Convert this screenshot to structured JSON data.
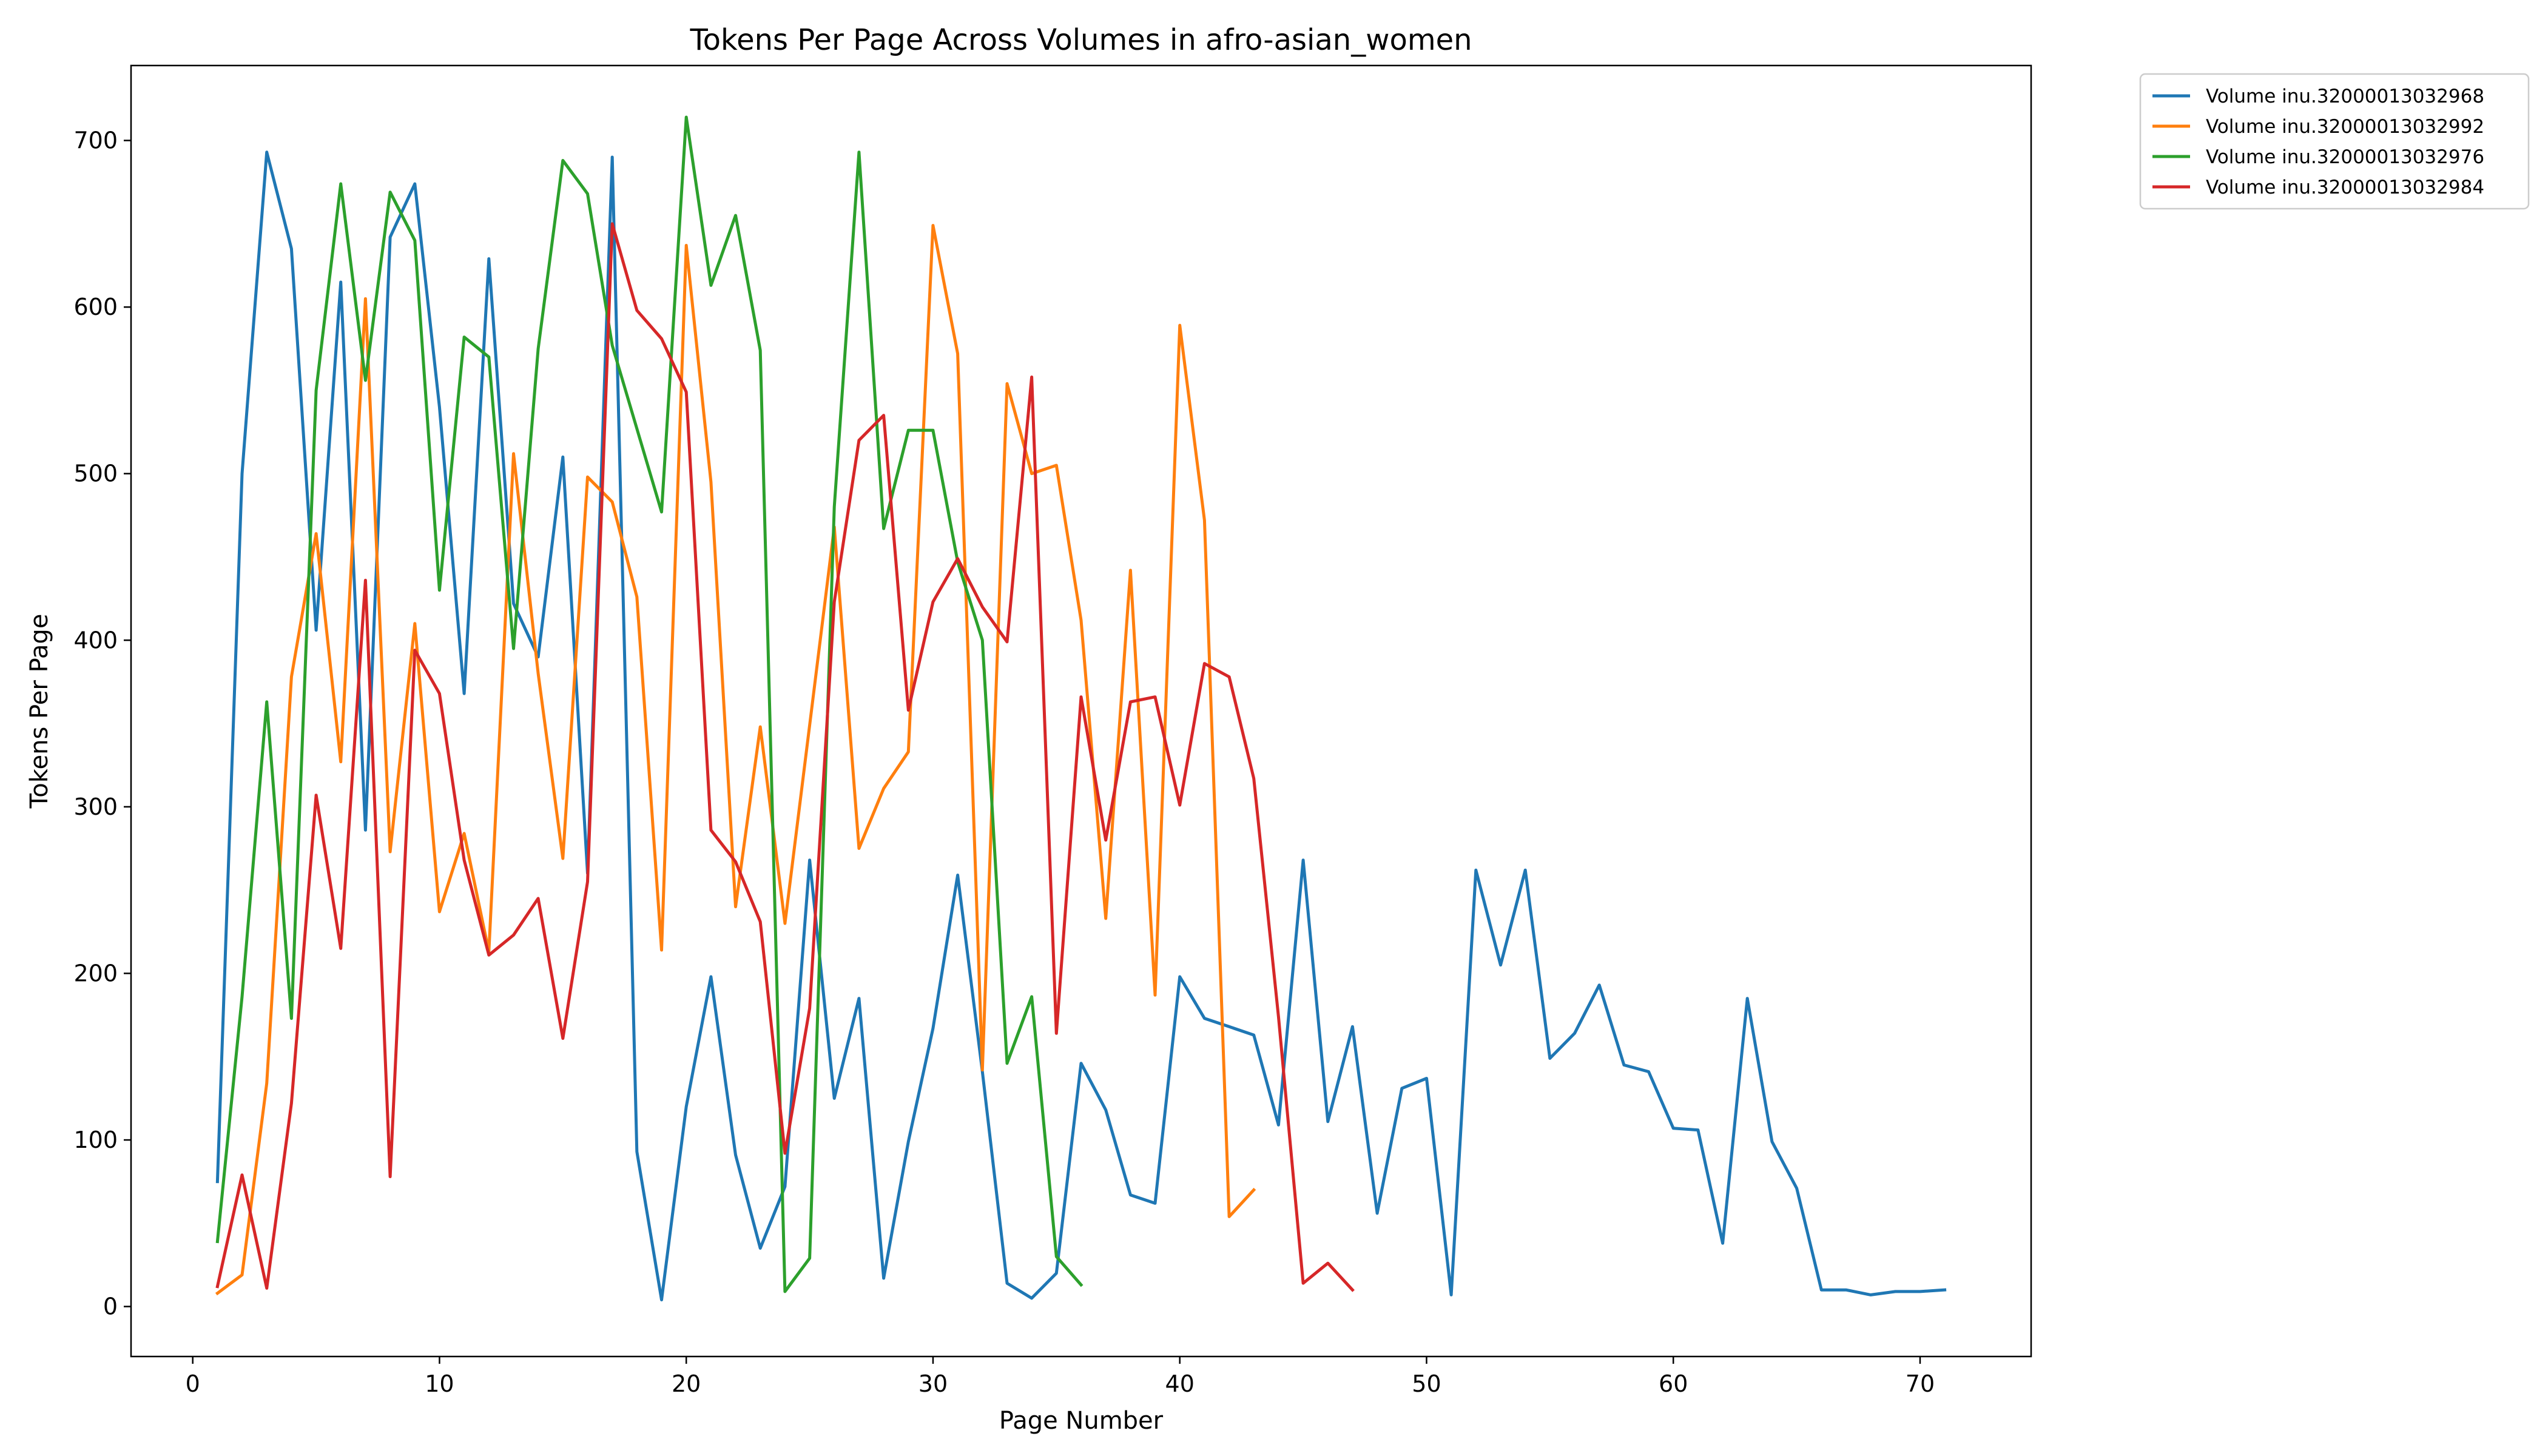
{
  "chart_data": {
    "type": "line",
    "title": "Tokens Per Page Across Volumes in afro-asian_women",
    "xlabel": "Page Number",
    "ylabel": "Tokens Per Page",
    "xlim": [
      -2.5,
      74.5
    ],
    "ylim": [
      -30,
      745
    ],
    "xticks": [
      0,
      10,
      20,
      30,
      40,
      50,
      60,
      70
    ],
    "yticks": [
      0,
      100,
      200,
      300,
      400,
      500,
      600,
      700
    ],
    "grid": false,
    "legend_position": "outside-top-right",
    "series": [
      {
        "name": "Volume inu.32000013032968",
        "color": "#1f77b4",
        "x": [
          1,
          2,
          3,
          4,
          5,
          6,
          7,
          8,
          9,
          10,
          11,
          12,
          13,
          14,
          15,
          16,
          17,
          18,
          19,
          20,
          21,
          22,
          23,
          24,
          25,
          26,
          27,
          28,
          29,
          30,
          31,
          32,
          33,
          34,
          35,
          36,
          37,
          38,
          39,
          40,
          41,
          42,
          43,
          44,
          45,
          46,
          47,
          48,
          49,
          50,
          51,
          52,
          53,
          54,
          55,
          56,
          57,
          58,
          59,
          60,
          61,
          62,
          63,
          64,
          65,
          66,
          67,
          68,
          69,
          70,
          71
        ],
        "values": [
          75,
          500,
          693,
          635,
          406,
          615,
          286,
          642,
          674,
          540,
          368,
          629,
          422,
          390,
          510,
          260,
          690,
          93,
          4,
          120,
          198,
          91,
          35,
          72,
          268,
          125,
          185,
          17,
          99,
          167,
          259,
          141,
          14,
          5,
          20,
          146,
          118,
          67,
          62,
          198,
          173,
          168,
          163,
          109,
          268,
          111,
          168,
          56,
          131,
          137,
          7,
          262,
          205,
          262,
          149,
          164,
          193,
          145,
          141,
          107,
          106,
          38,
          185,
          99,
          71,
          10,
          10,
          7,
          9,
          9,
          10
        ]
      },
      {
        "name": "Volume inu.32000013032992",
        "color": "#ff7f0e",
        "x": [
          1,
          2,
          3,
          4,
          5,
          6,
          7,
          8,
          9,
          10,
          11,
          12,
          13,
          14,
          15,
          16,
          17,
          18,
          19,
          20,
          21,
          22,
          23,
          24,
          25,
          26,
          27,
          28,
          29,
          30,
          31,
          32,
          33,
          34,
          35,
          36,
          37,
          38,
          39,
          40,
          41,
          42,
          43
        ],
        "values": [
          8,
          19,
          134,
          378,
          464,
          327,
          605,
          273,
          410,
          237,
          284,
          213,
          512,
          380,
          269,
          498,
          483,
          426,
          214,
          637,
          495,
          240,
          348,
          230,
          349,
          468,
          275,
          311,
          333,
          649,
          572,
          142,
          554,
          500,
          505,
          412,
          233,
          442,
          187,
          589,
          472,
          54,
          70
        ]
      },
      {
        "name": "Volume inu.32000013032976",
        "color": "#2ca02c",
        "x": [
          1,
          2,
          3,
          4,
          5,
          6,
          7,
          8,
          9,
          10,
          11,
          12,
          13,
          14,
          15,
          16,
          17,
          18,
          19,
          20,
          21,
          22,
          23,
          24,
          25,
          26,
          27,
          28,
          29,
          30,
          31,
          32,
          33,
          34,
          35,
          36
        ],
        "values": [
          39,
          186,
          363,
          173,
          550,
          674,
          556,
          669,
          640,
          430,
          582,
          570,
          395,
          575,
          688,
          668,
          577,
          527,
          477,
          714,
          613,
          655,
          574,
          9,
          29,
          480,
          693,
          467,
          526,
          526,
          447,
          400,
          146,
          186,
          30,
          13
        ]
      },
      {
        "name": "Volume inu.32000013032984",
        "color": "#d62728",
        "x": [
          1,
          2,
          3,
          4,
          5,
          6,
          7,
          8,
          9,
          10,
          11,
          12,
          13,
          14,
          15,
          16,
          17,
          18,
          19,
          20,
          21,
          22,
          23,
          24,
          25,
          26,
          27,
          28,
          29,
          30,
          31,
          32,
          33,
          34,
          35,
          36,
          37,
          38,
          39,
          40,
          41,
          42,
          43,
          44,
          45,
          46,
          47
        ],
        "values": [
          12,
          79,
          11,
          122,
          307,
          215,
          436,
          78,
          394,
          368,
          268,
          211,
          223,
          245,
          161,
          255,
          650,
          598,
          581,
          549,
          286,
          267,
          231,
          92,
          179,
          423,
          520,
          535,
          358,
          423,
          449,
          420,
          399,
          558,
          164,
          366,
          280,
          363,
          366,
          301,
          386,
          378,
          317,
          174,
          14,
          26,
          10
        ]
      }
    ]
  }
}
